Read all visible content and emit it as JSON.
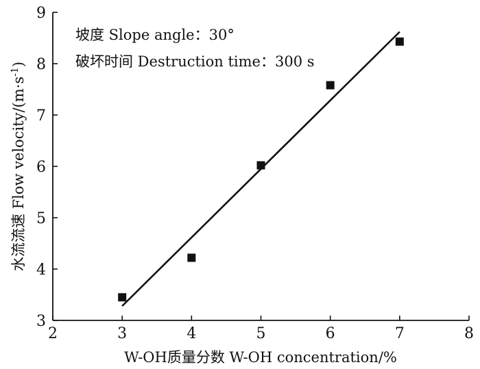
{
  "chart_data": {
    "type": "scatter",
    "title": "",
    "xlabel": "W-OH质量分数 W-OH concentration/%",
    "ylabel_main": "水流流速 Flow velocity/(m·s",
    "ylabel_sup": "-1",
    "ylabel_end": ")",
    "xlim": [
      2,
      8
    ],
    "ylim": [
      3,
      9
    ],
    "x_ticks": [
      "2",
      "3",
      "4",
      "5",
      "6",
      "7",
      "8"
    ],
    "y_ticks": [
      "3",
      "4",
      "5",
      "6",
      "7",
      "8",
      "9"
    ],
    "grid": false,
    "points": [
      {
        "x": 3,
        "y": 3.45
      },
      {
        "x": 4,
        "y": 4.22
      },
      {
        "x": 5,
        "y": 6.02
      },
      {
        "x": 6,
        "y": 7.58
      },
      {
        "x": 7,
        "y": 8.43
      }
    ],
    "fit_line": {
      "x": [
        3,
        7
      ],
      "y": [
        3.28,
        8.62
      ]
    },
    "annotations": [
      "坡度 Slope angle：30°",
      "破坏时间 Destruction time：300 s"
    ]
  }
}
